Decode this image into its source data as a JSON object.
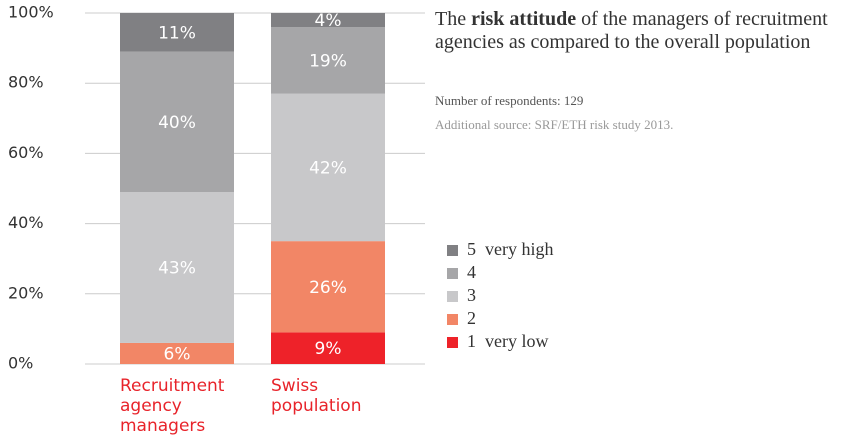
{
  "chart_data": {
    "type": "stacked_bar",
    "title": [
      "The",
      "risk attitude",
      "of the managers of recruitment agencies as compared to the overall population"
    ],
    "subtitle": "Number of respondents: 129",
    "source": "Additional source: SRF/ETH risk study 2013.",
    "categories": [
      "Recruitment agency managers",
      "Swiss population"
    ],
    "series": [
      {
        "name": "1  very low",
        "color": "#ee2229",
        "values": [
          0,
          9
        ],
        "value_labels": [
          null,
          "9%"
        ]
      },
      {
        "name": "2",
        "color": "#f28666",
        "values": [
          6,
          26
        ],
        "value_labels": [
          "6%",
          "26%"
        ]
      },
      {
        "name": "3",
        "color": "#c8c8ca",
        "values": [
          43,
          42
        ],
        "value_labels": [
          "43%",
          "42%"
        ]
      },
      {
        "name": "4",
        "color": "#a6a6a8",
        "values": [
          40,
          19
        ],
        "value_labels": [
          "40%",
          "19%"
        ]
      },
      {
        "name": "5  very high",
        "color": "#808083",
        "values": [
          11,
          4
        ],
        "value_labels": [
          "11%",
          "4%"
        ]
      }
    ],
    "ylim": [
      0,
      100
    ],
    "yticks": [
      {
        "value": 0,
        "label": "0%"
      },
      {
        "value": 20,
        "label": "20%"
      },
      {
        "value": 40,
        "label": "40%"
      },
      {
        "value": 60,
        "label": "60%"
      },
      {
        "value": 80,
        "label": "80%"
      },
      {
        "value": 100,
        "label": "100%"
      }
    ],
    "grid": true
  }
}
